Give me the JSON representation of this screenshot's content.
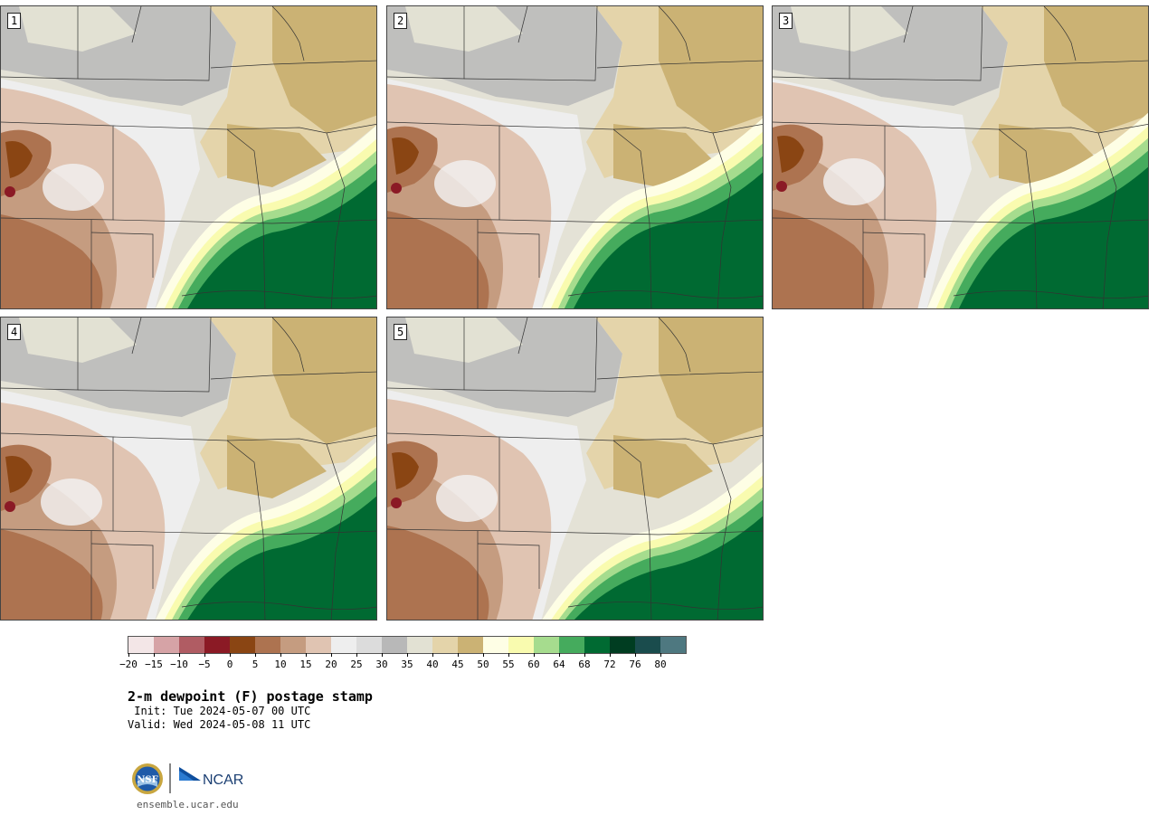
{
  "panels": [
    {
      "id": "1",
      "label": "1",
      "variant": 0
    },
    {
      "id": "2",
      "label": "2",
      "variant": 1
    },
    {
      "id": "3",
      "label": "3",
      "variant": 2
    },
    {
      "id": "4",
      "label": "4",
      "variant": 3
    },
    {
      "id": "5",
      "label": "5",
      "variant": 4
    }
  ],
  "colorbar": {
    "colors": [
      "#f3e6e7",
      "#d6a3a6",
      "#b05c63",
      "#8b1a25",
      "#8a4513",
      "#ad7350",
      "#c59c80",
      "#e0c4b2",
      "#eeeeee",
      "#dcdcdc",
      "#b8b8b8",
      "#e2e1d3",
      "#e4d4aa",
      "#cbb274",
      "#fefee5",
      "#f9fbaf",
      "#a6dc8e",
      "#45ab5d",
      "#006a32",
      "#003d21",
      "#1a4c4d",
      "#4e7880"
    ],
    "ticks": [
      "-20",
      "-15",
      "-10",
      "-5",
      "0",
      "5",
      "10",
      "15",
      "20",
      "25",
      "30",
      "35",
      "40",
      "45",
      "50",
      "55",
      "60",
      "64",
      "68",
      "72",
      "76",
      "80"
    ]
  },
  "title": "2-m dewpoint (F) postage stamp",
  "init": " Init: Tue 2024-05-07 00 UTC",
  "valid": "Valid: Wed 2024-05-08 11 UTC",
  "logos": {
    "nsf": "NSF",
    "ncar": "NCAR"
  },
  "url": "ensemble.ucar.edu"
}
